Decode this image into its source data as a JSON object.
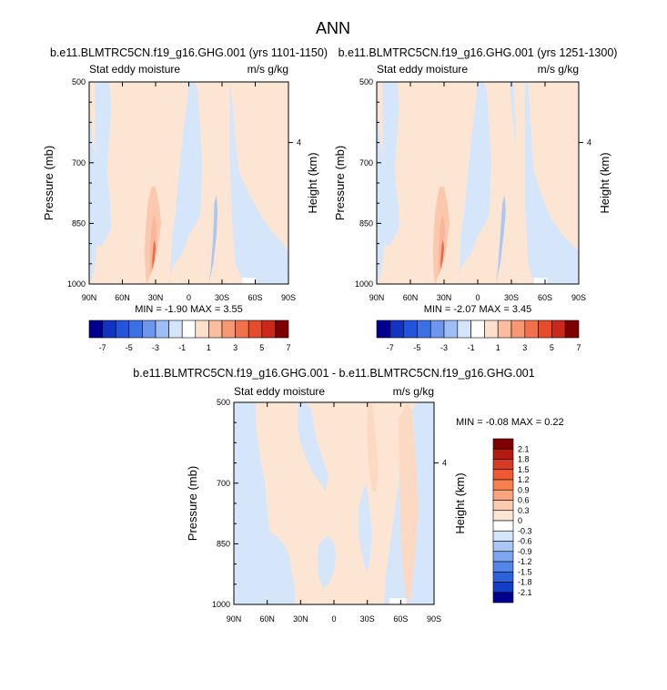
{
  "page_title": "ANN",
  "colors": {
    "pos_light": "#fde5d3",
    "neg_light": "#d6e6fa",
    "neg_mid": "#a9c6f4",
    "pos_mid": "#f9b69a",
    "pos_strong": "#f0663f",
    "axis": "#000000",
    "zero_region": "#ffffff"
  },
  "chart_data": [
    {
      "type": "heatmap",
      "title": "b.e11.BLMTRC5CN.f19_g16.GHG.001 (yrs 1101-1150)",
      "left_label": "Stat eddy moisture",
      "right_label": "m/s g/kg",
      "ylabel": "Pressure (mb)",
      "ylabel_right": "Height (km)",
      "xticks": [
        "90N",
        "60N",
        "30N",
        "0",
        "30S",
        "60S",
        "90S"
      ],
      "yticks": [
        "500",
        "700",
        "850",
        "1000"
      ],
      "ytick_values": [
        500,
        700,
        850,
        1000
      ],
      "right_ticks": [
        "4"
      ],
      "xlim": [
        -90,
        90
      ],
      "ylim": [
        1000,
        500
      ],
      "stats": "MIN =  -1.90   MAX =   3.55",
      "field_regions": [
        {
          "value": -0.5,
          "x": [
            -90,
            -90,
            -88,
            -85,
            -83,
            -82,
            -81,
            -82,
            -84,
            -86,
            -88,
            -90
          ],
          "p": [
            500,
            560,
            620,
            680,
            720,
            760,
            820,
            880,
            930,
            970,
            990,
            1000
          ]
        },
        {
          "value": -0.5,
          "x": [
            -85,
            -80,
            -72,
            -70,
            -72,
            -74,
            -71,
            -70,
            -78,
            -84
          ],
          "p": [
            500,
            500,
            500,
            560,
            640,
            720,
            800,
            860,
            905,
            905
          ]
        },
        {
          "value": -0.5,
          "x": [
            -18,
            -15,
            -5,
            0,
            5,
            10,
            11,
            12,
            10,
            8,
            5,
            0,
            -2,
            -5,
            -8,
            -10,
            -12,
            -15,
            -16,
            -17
          ],
          "p": [
            1000,
            960,
            920,
            880,
            860,
            830,
            800,
            700,
            600,
            520,
            500,
            500,
            560,
            620,
            700,
            760,
            820,
            880,
            940,
            1000
          ]
        },
        {
          "value": -0.5,
          "x": [
            37,
            40,
            42,
            45,
            55,
            65,
            75,
            85,
            90,
            90,
            75,
            60,
            50,
            42,
            39,
            37
          ],
          "p": [
            500,
            560,
            640,
            720,
            780,
            830,
            870,
            900,
            920,
            1000,
            1000,
            1000,
            1000,
            950,
            850,
            700
          ]
        },
        {
          "value": -1.0,
          "x": [
            18,
            22,
            25,
            26,
            25,
            23,
            22,
            20
          ],
          "p": [
            1000,
            950,
            880,
            820,
            780,
            800,
            880,
            960
          ]
        },
        {
          "value": 1.0,
          "x": [
            -38,
            -32,
            -28,
            -25,
            -27,
            -30,
            -34,
            -37,
            -39,
            -40,
            -39
          ],
          "p": [
            1000,
            960,
            910,
            850,
            800,
            760,
            760,
            800,
            860,
            920,
            980
          ]
        },
        {
          "value": 2.0,
          "x": [
            -35,
            -32,
            -30,
            -29,
            -30,
            -32,
            -34,
            -35
          ],
          "p": [
            980,
            950,
            910,
            870,
            840,
            830,
            870,
            930
          ]
        },
        {
          "value": 3.0,
          "x": [
            -33,
            -31,
            -30,
            -31,
            -32,
            -33
          ],
          "p": [
            965,
            940,
            910,
            890,
            905,
            940
          ]
        },
        {
          "value": 0.0,
          "x": [
            48,
            60,
            60,
            48
          ],
          "p": [
            985,
            985,
            1000,
            1000
          ]
        }
      ],
      "colorbar": {
        "orientation": "horizontal",
        "labels": [
          "-7",
          "-5",
          "-3",
          "-1",
          "1",
          "3",
          "5",
          "7"
        ],
        "colors": [
          "#00008f",
          "#1333c1",
          "#2454dc",
          "#3d6fe5",
          "#6d96ee",
          "#9ebdf4",
          "#d4e4fa",
          "#ffffff",
          "#fde0cc",
          "#fbbd9e",
          "#f79872",
          "#f2714a",
          "#e44c2c",
          "#c9281a",
          "#7f0000"
        ]
      }
    },
    {
      "type": "heatmap",
      "title": "b.e11.BLMTRC5CN.f19_g16.GHG.001 (yrs 1251-1300)",
      "left_label": "Stat eddy moisture",
      "right_label": "m/s g/kg",
      "ylabel": "Pressure (mb)",
      "ylabel_right": "Height (km)",
      "xticks": [
        "90N",
        "60N",
        "30N",
        "0",
        "30S",
        "60S",
        "90S"
      ],
      "yticks": [
        "500",
        "700",
        "850",
        "1000"
      ],
      "ytick_values": [
        500,
        700,
        850,
        1000
      ],
      "right_ticks": [
        "4"
      ],
      "xlim": [
        -90,
        90
      ],
      "ylim": [
        1000,
        500
      ],
      "stats": "MIN =  -2.07   MAX =   3.45",
      "field_regions": [
        {
          "value": -0.5,
          "x": [
            -90,
            -90,
            -88,
            -85,
            -83,
            -82,
            -81,
            -82,
            -84,
            -86,
            -88,
            -90
          ],
          "p": [
            500,
            560,
            620,
            680,
            720,
            760,
            820,
            880,
            930,
            970,
            990,
            1000
          ]
        },
        {
          "value": -0.5,
          "x": [
            -85,
            -80,
            -72,
            -70,
            -72,
            -74,
            -71,
            -70,
            -78,
            -84
          ],
          "p": [
            500,
            500,
            500,
            560,
            640,
            720,
            800,
            860,
            905,
            905
          ]
        },
        {
          "value": -0.5,
          "x": [
            -18,
            -15,
            -5,
            0,
            5,
            10,
            11,
            12,
            10,
            8,
            5,
            0,
            -2,
            -5,
            -8,
            -10,
            -12,
            -15,
            -16,
            -17
          ],
          "p": [
            1000,
            960,
            920,
            880,
            860,
            830,
            800,
            700,
            600,
            520,
            500,
            500,
            560,
            620,
            700,
            760,
            820,
            880,
            940,
            1000
          ]
        },
        {
          "value": -0.5,
          "x": [
            42,
            45,
            47,
            50,
            58,
            66,
            76,
            85,
            90,
            90,
            75,
            60,
            50,
            45,
            42
          ],
          "p": [
            500,
            500,
            600,
            720,
            790,
            840,
            880,
            905,
            920,
            1000,
            1000,
            1000,
            1000,
            950,
            800
          ]
        },
        {
          "value": -0.5,
          "x": [
            28,
            32,
            33,
            34,
            33,
            30
          ],
          "p": [
            500,
            500,
            560,
            640,
            640,
            560
          ]
        },
        {
          "value": -1.0,
          "x": [
            16,
            20,
            23,
            25,
            24,
            22,
            20,
            18
          ],
          "p": [
            1000,
            950,
            880,
            820,
            780,
            800,
            880,
            960
          ]
        },
        {
          "value": 1.0,
          "x": [
            -38,
            -32,
            -28,
            -25,
            -27,
            -30,
            -34,
            -37,
            -39,
            -40,
            -39
          ],
          "p": [
            1000,
            960,
            910,
            850,
            800,
            760,
            760,
            800,
            860,
            920,
            980
          ]
        },
        {
          "value": 2.0,
          "x": [
            -35,
            -32,
            -30,
            -29,
            -30,
            -32,
            -34,
            -35
          ],
          "p": [
            980,
            950,
            910,
            870,
            840,
            830,
            870,
            930
          ]
        },
        {
          "value": 3.0,
          "x": [
            -33,
            -31,
            -30,
            -31,
            -32,
            -33
          ],
          "p": [
            965,
            940,
            910,
            890,
            905,
            940
          ]
        },
        {
          "value": 0.0,
          "x": [
            50,
            62,
            62,
            50
          ],
          "p": [
            985,
            985,
            1000,
            1000
          ]
        }
      ],
      "colorbar": {
        "orientation": "horizontal",
        "labels": [
          "-7",
          "-5",
          "-3",
          "-1",
          "1",
          "3",
          "5",
          "7"
        ],
        "colors": [
          "#00008f",
          "#1333c1",
          "#2454dc",
          "#3d6fe5",
          "#6d96ee",
          "#9ebdf4",
          "#d4e4fa",
          "#ffffff",
          "#fde0cc",
          "#fbbd9e",
          "#f79872",
          "#f2714a",
          "#e44c2c",
          "#c9281a",
          "#7f0000"
        ]
      }
    },
    {
      "type": "heatmap",
      "title": "b.e11.BLMTRC5CN.f19_g16.GHG.001 - b.e11.BLMTRC5CN.f19_g16.GHG.001",
      "left_label": "Stat eddy moisture",
      "right_label": "m/s g/kg",
      "ylabel": "Pressure (mb)",
      "ylabel_right": "Height (km)",
      "xticks": [
        "90N",
        "60N",
        "30N",
        "0",
        "30S",
        "60S",
        "90S"
      ],
      "yticks": [
        "500",
        "700",
        "850",
        "1000"
      ],
      "ytick_values": [
        500,
        700,
        850,
        1000
      ],
      "right_ticks": [
        "4"
      ],
      "xlim": [
        -90,
        90
      ],
      "ylim": [
        1000,
        500
      ],
      "stats": "MIN =  -0.08   MAX =   0.22",
      "field_regions": [
        {
          "value": -0.15,
          "x": [
            -90,
            -90,
            -80,
            -70,
            -62,
            -55,
            -48,
            -40,
            -35,
            -35,
            -38,
            -40,
            -45,
            -52,
            -58,
            -60,
            -62,
            -66,
            -68,
            -70,
            -70,
            -60,
            -45,
            -25
          ],
          "p": [
            500,
            1000,
            1000,
            1000,
            1000,
            1000,
            1000,
            1000,
            1000,
            960,
            920,
            880,
            850,
            830,
            820,
            760,
            700,
            640,
            600,
            560,
            500,
            500,
            500,
            500
          ]
        },
        {
          "value": -0.15,
          "x": [
            -32,
            -25,
            -20,
            -18,
            -15,
            -10,
            -5,
            -8,
            -12,
            -18,
            -25,
            -30,
            -33
          ],
          "p": [
            500,
            500,
            520,
            560,
            600,
            640,
            680,
            720,
            700,
            680,
            640,
            600,
            560
          ]
        },
        {
          "value": -0.15,
          "x": [
            -5,
            0,
            10,
            22,
            30,
            35,
            40,
            45,
            46,
            50,
            55,
            58,
            60,
            65,
            70,
            75,
            80,
            85,
            90,
            90,
            80,
            70,
            60,
            55,
            48,
            42,
            35,
            28,
            20,
            10,
            0
          ],
          "p": [
            1000,
            1000,
            1000,
            1000,
            1000,
            1000,
            1000,
            1000,
            940,
            860,
            760,
            700,
            620,
            560,
            520,
            500,
            500,
            500,
            500,
            1000,
            1000,
            1000,
            1000,
            1000,
            1000,
            1000,
            1000,
            1000,
            1000,
            1000,
            1000
          ]
        },
        {
          "value": -0.15,
          "x": [
            22,
            26,
            28,
            30,
            32,
            34,
            33,
            30,
            27,
            24,
            22
          ],
          "p": [
            760,
            720,
            700,
            720,
            760,
            820,
            880,
            920,
            900,
            860,
            820
          ]
        },
        {
          "value": -0.15,
          "x": [
            -15,
            -10,
            -5,
            0,
            2,
            0,
            -5,
            -10,
            -14
          ],
          "p": [
            860,
            840,
            830,
            850,
            880,
            920,
            950,
            960,
            930
          ]
        },
        {
          "value": 0.15,
          "x": [
            58,
            62,
            66,
            70,
            72,
            74,
            76,
            74,
            72,
            70,
            68,
            65,
            62,
            60
          ],
          "p": [
            540,
            520,
            500,
            520,
            580,
            660,
            760,
            840,
            900,
            960,
            1000,
            980,
            920,
            820
          ]
        },
        {
          "value": 0.15,
          "x": [
            30,
            34,
            36,
            38,
            40,
            38,
            35,
            32,
            30
          ],
          "p": [
            500,
            500,
            540,
            600,
            680,
            720,
            720,
            680,
            600
          ]
        },
        {
          "value": 0.0,
          "x": [
            50,
            65,
            65,
            50
          ],
          "p": [
            985,
            985,
            1000,
            1000
          ]
        }
      ],
      "colorbar": {
        "orientation": "vertical",
        "labels": [
          "2.1",
          "1.8",
          "1.5",
          "1.2",
          "0.9",
          "0.6",
          "0.3",
          "0",
          "-0.3",
          "-0.6",
          "-0.9",
          "-1.2",
          "-1.5",
          "-1.8",
          "-2.1"
        ],
        "colors": [
          "#7f0000",
          "#b31a12",
          "#d63a22",
          "#ef5a34",
          "#f7804f",
          "#f9a47e",
          "#fbcbb1",
          "#fde5d3",
          "#ffffff",
          "#d6e6fa",
          "#a9c6f4",
          "#7ea7ef",
          "#5586e8",
          "#2e62dd",
          "#143ec7",
          "#00008f"
        ]
      }
    }
  ]
}
